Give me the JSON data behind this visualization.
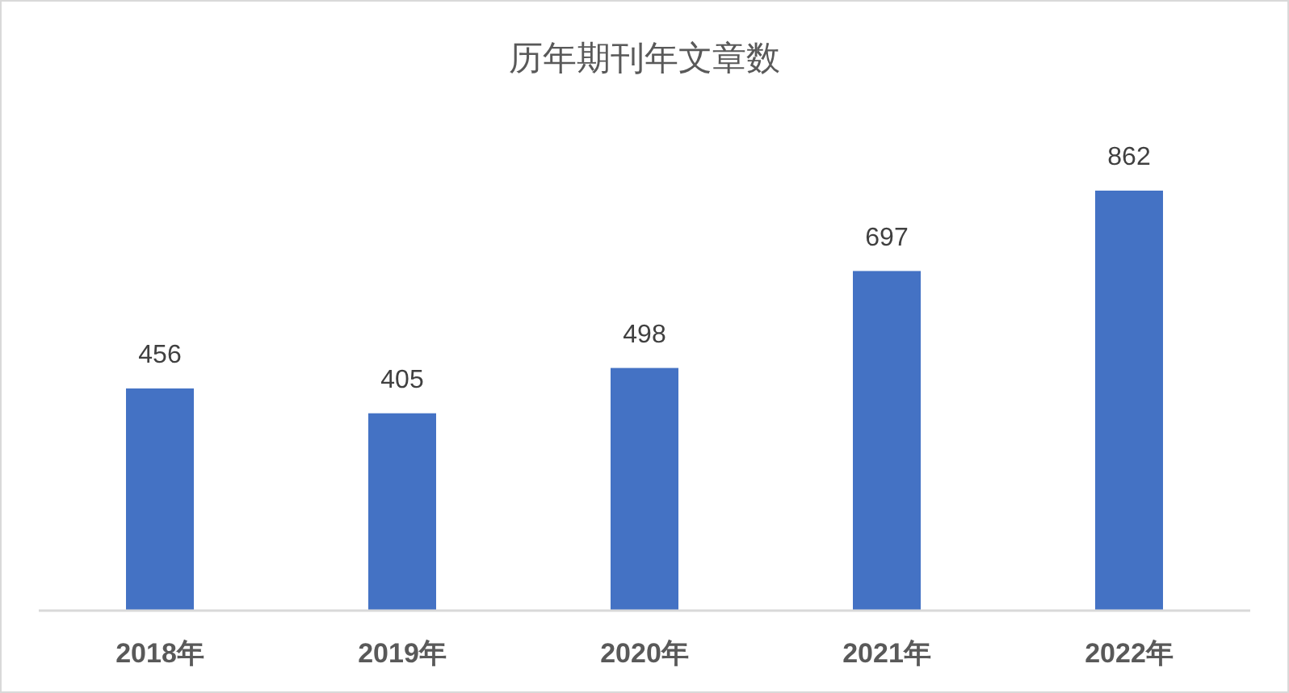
{
  "chart_data": {
    "type": "bar",
    "title": "历年期刊年文章数",
    "categories": [
      "2018年",
      "2019年",
      "2020年",
      "2021年",
      "2022年"
    ],
    "values": [
      456,
      405,
      498,
      697,
      862
    ],
    "color": "#4472c4",
    "data_labels": true
  }
}
